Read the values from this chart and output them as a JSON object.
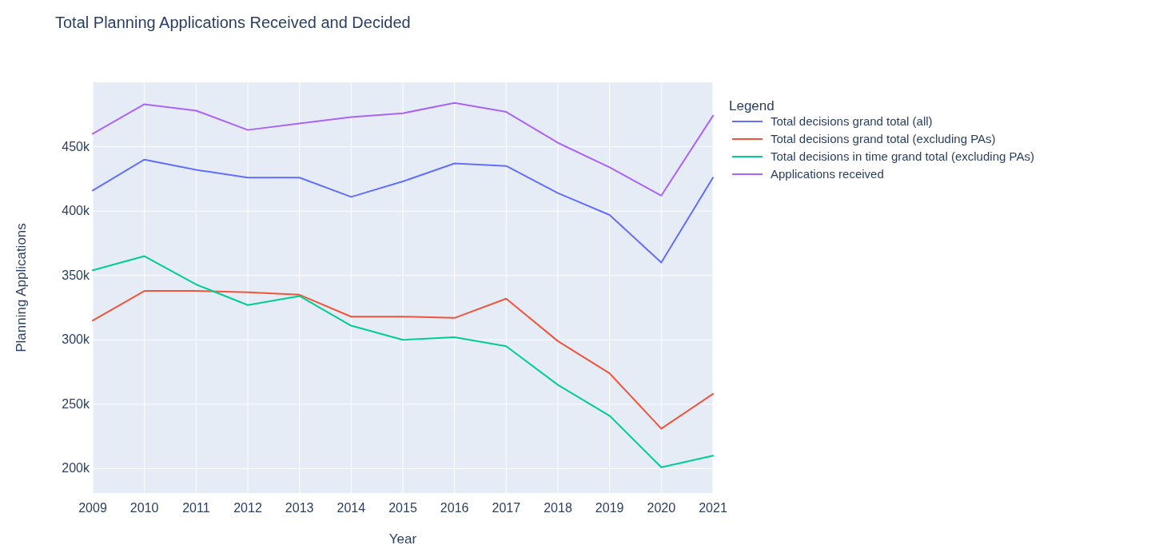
{
  "chart_data": {
    "type": "line",
    "title": "Total Planning Applications Received and Decided",
    "xlabel": "Year",
    "ylabel": "Planning Applications",
    "legend_title": "Legend",
    "x": [
      2009,
      2010,
      2011,
      2012,
      2013,
      2014,
      2015,
      2016,
      2017,
      2018,
      2019,
      2020,
      2021
    ],
    "series": [
      {
        "name": "Total decisions grand total (all)",
        "color": "#636efa",
        "values": [
          416,
          440,
          432,
          426,
          426,
          411,
          423,
          437,
          435,
          414,
          397,
          360,
          426
        ]
      },
      {
        "name": "Total decisions grand total (excluding PAs)",
        "color": "#ef553b",
        "values": [
          315,
          338,
          338,
          337,
          335,
          318,
          318,
          317,
          332,
          299,
          274,
          231,
          258
        ]
      },
      {
        "name": "Total decisions in time grand total (excluding PAs)",
        "color": "#00cc96",
        "values": [
          354,
          365,
          343,
          327,
          334,
          311,
          300,
          302,
          295,
          265,
          241,
          201,
          210
        ]
      },
      {
        "name": "Applications received",
        "color": "#ab63fa",
        "values": [
          460,
          483,
          478,
          463,
          468,
          473,
          476,
          484,
          477,
          453,
          434,
          412,
          474
        ]
      }
    ],
    "xlim": [
      2009,
      2021
    ],
    "xticks": [
      2009,
      2010,
      2011,
      2012,
      2013,
      2014,
      2015,
      2016,
      2017,
      2018,
      2019,
      2020,
      2021
    ],
    "ylim": [
      181,
      500
    ],
    "yticks": [
      {
        "value": 200,
        "label": "200k"
      },
      {
        "value": 250,
        "label": "250k"
      },
      {
        "value": 300,
        "label": "300k"
      },
      {
        "value": 350,
        "label": "350k"
      },
      {
        "value": 400,
        "label": "400k"
      },
      {
        "value": 450,
        "label": "450k"
      }
    ],
    "grid": true,
    "legend": "top right",
    "marker": "none",
    "line_style": "solid"
  }
}
